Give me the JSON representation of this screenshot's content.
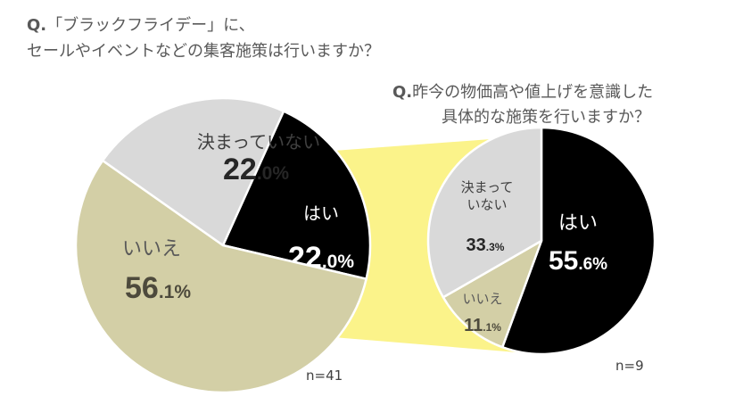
{
  "question1": {
    "prefix": "Q.",
    "line1": "「ブラックフライデー」に、",
    "line2": "セールやイベントなどの集客施策は行いますか？"
  },
  "question2": {
    "prefix": "Q.",
    "line1": "昨今の物価高や値上げを意識した",
    "line2": "具体的な施策を行いますか？"
  },
  "n1": "n=41",
  "n2": "n=9",
  "colors": {
    "yes": "#000000",
    "undecided": "#d9d9d9",
    "no": "#d3cfa6",
    "connector": "#fbf38a"
  },
  "chart_data": [
    {
      "type": "pie",
      "sample": "n=41",
      "slices": [
        {
          "label": "はい",
          "int": "22",
          "dec": ".0%",
          "value": 22.0
        },
        {
          "label": "いいえ",
          "int": "56",
          "dec": ".1%",
          "value": 56.1
        },
        {
          "label": "決まっていない",
          "int": "22",
          "dec": ".0%",
          "value": 22.0
        }
      ]
    },
    {
      "type": "pie",
      "sample": "n=9",
      "slices": [
        {
          "label": "はい",
          "int": "55",
          "dec": ".6%",
          "value": 55.6
        },
        {
          "label": "いいえ",
          "int": "11",
          "dec": ".1%",
          "value": 11.1
        },
        {
          "label": "決まって\nいない",
          "int": "33",
          "dec": ".3%",
          "value": 33.3
        }
      ]
    }
  ]
}
